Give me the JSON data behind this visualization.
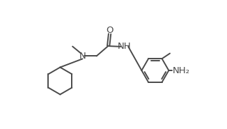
{
  "bg_color": "#ffffff",
  "line_color": "#4a4a4a",
  "text_color": "#4a4a4a",
  "line_width": 1.4,
  "font_size": 8.5,
  "figsize": [
    3.26,
    1.85
  ],
  "dpi": 100,
  "xlim": [
    0,
    10
  ],
  "ylim": [
    0,
    6
  ]
}
